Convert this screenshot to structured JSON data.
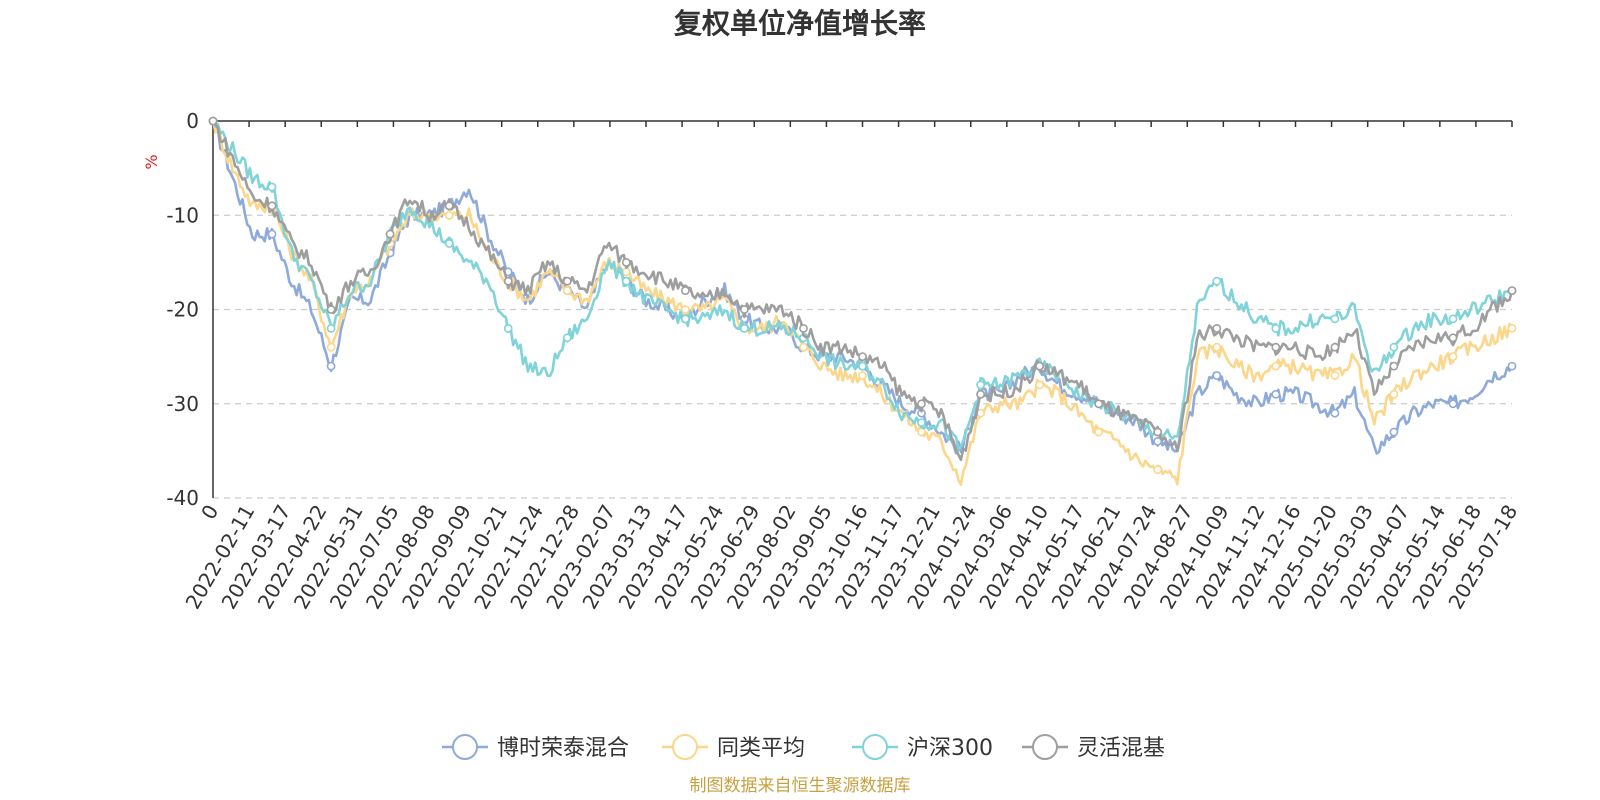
{
  "chart_data": {
    "type": "line",
    "title": "复权单位净值增长率",
    "ylabel": "%",
    "ylim": [
      -40,
      0
    ],
    "yticks": [
      0,
      -10,
      -20,
      -30,
      -40
    ],
    "x_first_label": "0",
    "x_labels": [
      "2022-02-11",
      "2022-03-17",
      "2022-04-22",
      "2022-05-31",
      "2022-07-05",
      "2022-08-08",
      "2022-09-09",
      "2022-10-21",
      "2022-11-24",
      "2022-12-28",
      "2023-02-07",
      "2023-03-13",
      "2023-04-17",
      "2023-05-24",
      "2023-06-29",
      "2023-08-02",
      "2023-09-05",
      "2023-10-16",
      "2023-11-17",
      "2023-12-21",
      "2024-01-24",
      "2024-03-06",
      "2024-04-10",
      "2024-05-17",
      "2024-06-21",
      "2024-07-24",
      "2024-08-27",
      "2024-10-09",
      "2024-11-12",
      "2024-12-16",
      "2025-01-20",
      "2025-03-03",
      "2025-04-07",
      "2025-05-14",
      "2025-06-18",
      "2025-07-18"
    ],
    "grid": "dashed-horizontal",
    "legend_position": "bottom-center",
    "series": [
      {
        "name": "博时荣泰混合",
        "color": "#8eaadb",
        "values": [
          0,
          -6,
          -12,
          -12,
          -17,
          -20,
          -26,
          -19,
          -19,
          -14,
          -10,
          -10,
          -9,
          -7,
          -12,
          -16,
          -19,
          -16,
          -18,
          -20,
          -15,
          -17,
          -19,
          -20,
          -21,
          -19,
          -18,
          -21,
          -22,
          -22,
          -24,
          -25,
          -25,
          -26,
          -28,
          -30,
          -31,
          -33,
          -35,
          -29,
          -29,
          -27,
          -26,
          -28,
          -29,
          -30,
          -31,
          -32,
          -34,
          -35,
          -29,
          -27,
          -29,
          -30,
          -29,
          -29,
          -30,
          -31,
          -29,
          -35,
          -33,
          -31,
          -30,
          -30,
          -29,
          -27,
          -26
        ]
      },
      {
        "name": "同类平均",
        "color": "#fcd68a",
        "values": [
          0,
          -5,
          -9,
          -9,
          -14,
          -17,
          -24,
          -18,
          -17,
          -13,
          -10,
          -10,
          -10,
          -10,
          -14,
          -17,
          -19,
          -16,
          -18,
          -19,
          -15,
          -16,
          -18,
          -19,
          -20,
          -20,
          -19,
          -22,
          -22,
          -21,
          -24,
          -26,
          -27,
          -27,
          -29,
          -31,
          -33,
          -34,
          -38,
          -31,
          -30,
          -30,
          -28,
          -29,
          -31,
          -33,
          -34,
          -36,
          -37,
          -38,
          -25,
          -24,
          -26,
          -27,
          -26,
          -26,
          -27,
          -27,
          -25,
          -32,
          -29,
          -27,
          -26,
          -25,
          -24,
          -23,
          -22
        ]
      },
      {
        "name": "沪深300",
        "color": "#7fd3d9",
        "values": [
          0,
          -3,
          -6,
          -7,
          -14,
          -17,
          -22,
          -18,
          -17,
          -12,
          -9,
          -11,
          -13,
          -15,
          -17,
          -22,
          -26,
          -27,
          -23,
          -21,
          -15,
          -17,
          -19,
          -20,
          -21,
          -21,
          -20,
          -22,
          -22,
          -22,
          -23,
          -25,
          -26,
          -26,
          -28,
          -31,
          -32,
          -32,
          -35,
          -28,
          -28,
          -27,
          -26,
          -27,
          -29,
          -30,
          -31,
          -32,
          -33,
          -34,
          -20,
          -17,
          -19,
          -21,
          -22,
          -22,
          -21,
          -21,
          -20,
          -27,
          -24,
          -22,
          -21,
          -21,
          -20,
          -19,
          -18
        ]
      },
      {
        "name": "灵活混基",
        "color": "#9e9e9e",
        "values": [
          0,
          -4,
          -8,
          -9,
          -13,
          -15,
          -20,
          -17,
          -16,
          -12,
          -8,
          -10,
          -9,
          -11,
          -14,
          -17,
          -18,
          -15,
          -17,
          -18,
          -13,
          -15,
          -16,
          -17,
          -18,
          -19,
          -18,
          -20,
          -20,
          -20,
          -22,
          -24,
          -24,
          -25,
          -26,
          -29,
          -30,
          -31,
          -36,
          -29,
          -29,
          -28,
          -26,
          -27,
          -28,
          -30,
          -31,
          -32,
          -33,
          -35,
          -23,
          -22,
          -23,
          -24,
          -24,
          -24,
          -25,
          -24,
          -22,
          -29,
          -26,
          -24,
          -23,
          -23,
          -22,
          -20,
          -18
        ]
      }
    ]
  },
  "footer": {
    "source": "制图数据来自恒生聚源数据库"
  }
}
